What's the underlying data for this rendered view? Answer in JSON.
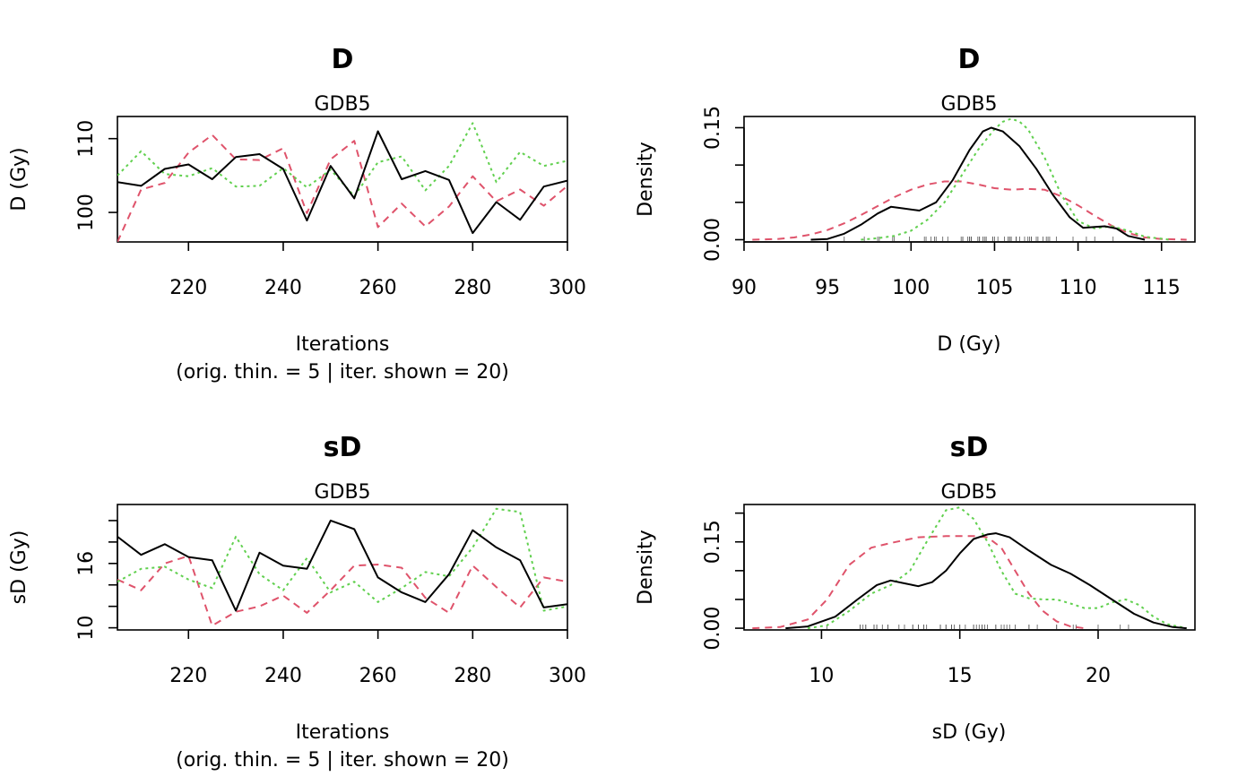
{
  "chart_data": [
    {
      "type": "line",
      "title": "D",
      "subtitle": "GDB5",
      "xlabel": "Iterations",
      "xlabel2": "(orig. thin. = 5 | iter. shown = 20)",
      "ylabel": "D (Gy)",
      "xlim": [
        205,
        300
      ],
      "ylim": [
        96,
        113
      ],
      "xticks": [
        220,
        240,
        260,
        280,
        300
      ],
      "yticks": [
        100,
        110
      ],
      "x": [
        205,
        210,
        215,
        220,
        225,
        230,
        235,
        240,
        245,
        250,
        255,
        260,
        265,
        270,
        275,
        280,
        285,
        290,
        295,
        300
      ],
      "series": [
        {
          "color": "#000000",
          "dash": "",
          "values": [
            104.1,
            103.6,
            105.9,
            106.5,
            104.5,
            107.5,
            107.9,
            105.9,
            98.9,
            106.3,
            101.9,
            111.0,
            104.5,
            105.6,
            104.4,
            97.2,
            101.4,
            99.0,
            103.5,
            104.3
          ]
        },
        {
          "color": "#DF536B",
          "dash": "8,6",
          "values": [
            96.0,
            103.1,
            104.0,
            108.1,
            110.5,
            107.2,
            107.1,
            108.7,
            99.9,
            107.2,
            109.7,
            98.0,
            101.2,
            98.1,
            100.8,
            104.9,
            101.5,
            103.1,
            100.9,
            103.6
          ]
        },
        {
          "color": "#61D04F",
          "dash": "3,4",
          "values": [
            105.0,
            108.3,
            105.2,
            104.9,
            106.0,
            103.5,
            103.6,
            106.0,
            103.4,
            105.8,
            102.2,
            106.8,
            107.6,
            103.0,
            106.3,
            112.1,
            104.1,
            108.2,
            106.3,
            107.0
          ]
        }
      ]
    },
    {
      "type": "line",
      "title": "D",
      "subtitle": "GDB5",
      "xlabel": "D (Gy)",
      "ylabel": "Density",
      "xlim": [
        90,
        117
      ],
      "ylim": [
        -0.003,
        0.165
      ],
      "xticks": [
        90,
        95,
        100,
        105,
        110,
        115
      ],
      "yticks": [
        0,
        0.05,
        0.1,
        0.15
      ],
      "ytick_labels": [
        "0.00",
        "",
        "",
        "0.15"
      ],
      "series": [
        {
          "color": "#000000",
          "dash": "",
          "x": [
            94,
            95,
            96,
            97,
            98,
            98.8,
            99.5,
            100.5,
            101.5,
            102.5,
            103.5,
            104.3,
            104.8,
            105.5,
            106.5,
            107.5,
            108.5,
            109.5,
            110.3,
            111,
            111.6,
            112.3,
            113,
            114
          ],
          "values": [
            0,
            0.001,
            0.008,
            0.02,
            0.035,
            0.044,
            0.042,
            0.039,
            0.05,
            0.08,
            0.12,
            0.145,
            0.15,
            0.145,
            0.125,
            0.095,
            0.06,
            0.03,
            0.016,
            0.017,
            0.018,
            0.015,
            0.005,
            0
          ]
        },
        {
          "color": "#DF536B",
          "dash": "8,6",
          "x": [
            90.5,
            92,
            93,
            94,
            95,
            96,
            97,
            98,
            99,
            100,
            101,
            102,
            103,
            104,
            105,
            106,
            107,
            108,
            109,
            110,
            111,
            112,
            113,
            114,
            115,
            116.5
          ],
          "values": [
            0,
            0.001,
            0.003,
            0.007,
            0.013,
            0.022,
            0.033,
            0.045,
            0.057,
            0.067,
            0.074,
            0.078,
            0.078,
            0.074,
            0.069,
            0.067,
            0.068,
            0.067,
            0.058,
            0.046,
            0.032,
            0.019,
            0.009,
            0.003,
            0.001,
            0
          ]
        },
        {
          "color": "#61D04F",
          "dash": "3,4",
          "x": [
            97,
            98,
            99,
            100,
            101,
            102,
            103,
            104,
            105,
            105.5,
            106,
            106.5,
            107,
            108,
            109,
            110,
            111,
            112,
            113,
            114,
            115.5
          ],
          "values": [
            0,
            0.002,
            0.005,
            0.012,
            0.027,
            0.05,
            0.085,
            0.12,
            0.148,
            0.158,
            0.162,
            0.158,
            0.148,
            0.11,
            0.06,
            0.025,
            0.015,
            0.018,
            0.012,
            0.004,
            0
          ]
        }
      ]
    },
    {
      "type": "line",
      "title": "sD",
      "subtitle": "GDB5",
      "xlabel": "Iterations",
      "xlabel2": "(orig. thin. = 5 | iter. shown = 20)",
      "ylabel": "sD (Gy)",
      "xlim": [
        205,
        300
      ],
      "ylim": [
        9.8,
        21.5
      ],
      "xticks": [
        220,
        240,
        260,
        280,
        300
      ],
      "yticks": [
        10,
        12,
        14,
        16,
        18,
        20
      ],
      "ytick_labels": [
        "10",
        "",
        "",
        "16",
        "",
        ""
      ],
      "x": [
        205,
        210,
        215,
        220,
        225,
        230,
        235,
        240,
        245,
        250,
        255,
        260,
        265,
        270,
        275,
        280,
        285,
        290,
        295,
        300
      ],
      "series": [
        {
          "color": "#000000",
          "dash": "",
          "values": [
            18.5,
            16.8,
            17.8,
            16.6,
            16.3,
            11.6,
            17.0,
            15.8,
            15.5,
            20.0,
            19.2,
            14.7,
            13.3,
            12.4,
            15.0,
            19.1,
            17.5,
            16.3,
            11.9,
            12.2
          ]
        },
        {
          "color": "#DF536B",
          "dash": "8,6",
          "values": [
            14.5,
            13.5,
            16.0,
            16.7,
            10.2,
            11.5,
            12.0,
            13.0,
            11.4,
            13.5,
            15.8,
            15.9,
            15.6,
            12.8,
            11.4,
            15.8,
            13.8,
            11.9,
            14.7,
            14.3
          ]
        },
        {
          "color": "#61D04F",
          "dash": "3,4",
          "values": [
            14.3,
            15.5,
            15.7,
            14.5,
            13.7,
            18.5,
            15.0,
            13.5,
            16.5,
            13.3,
            14.3,
            12.4,
            13.7,
            15.2,
            14.8,
            17.5,
            21.1,
            20.8,
            11.6,
            12.0
          ]
        }
      ]
    },
    {
      "type": "line",
      "title": "sD",
      "subtitle": "GDB5",
      "xlabel": "sD (Gy)",
      "ylabel": "Density",
      "xlim": [
        7.2,
        23.5
      ],
      "ylim": [
        -0.003,
        0.215
      ],
      "xticks": [
        10,
        15,
        20
      ],
      "yticks": [
        0,
        0.05,
        0.1,
        0.15,
        0.2
      ],
      "ytick_labels": [
        "0.00",
        "",
        "",
        "0.15",
        ""
      ],
      "series": [
        {
          "color": "#000000",
          "dash": "",
          "x": [
            8.7,
            9.5,
            10.5,
            11.3,
            12,
            12.5,
            13,
            13.5,
            14,
            14.5,
            15,
            15.5,
            16,
            16.3,
            16.8,
            17.5,
            18.3,
            19,
            19.7,
            20.5,
            21.3,
            22,
            22.7,
            23.2
          ],
          "values": [
            0,
            0.003,
            0.02,
            0.05,
            0.075,
            0.083,
            0.078,
            0.073,
            0.08,
            0.1,
            0.13,
            0.155,
            0.163,
            0.165,
            0.158,
            0.135,
            0.11,
            0.095,
            0.075,
            0.05,
            0.025,
            0.01,
            0.002,
            0
          ]
        },
        {
          "color": "#DF536B",
          "dash": "8,6",
          "x": [
            7.5,
            8.5,
            9.5,
            10.2,
            11,
            11.8,
            12.5,
            13.5,
            14.5,
            15.5,
            16,
            16.5,
            17,
            17.5,
            18,
            18.5,
            19,
            19.5
          ],
          "values": [
            0,
            0.002,
            0.015,
            0.05,
            0.11,
            0.14,
            0.148,
            0.158,
            0.16,
            0.16,
            0.158,
            0.14,
            0.1,
            0.06,
            0.03,
            0.012,
            0.003,
            0
          ]
        },
        {
          "color": "#61D04F",
          "dash": "3,4",
          "x": [
            9.5,
            10.2,
            11,
            11.8,
            12.5,
            13.2,
            13.8,
            14.5,
            15,
            15.5,
            16,
            16.5,
            17,
            17.5,
            18,
            18.5,
            19,
            19.5,
            20,
            20.5,
            21,
            21.5,
            22,
            22.5,
            23.2
          ],
          "values": [
            0,
            0.005,
            0.03,
            0.06,
            0.075,
            0.1,
            0.15,
            0.205,
            0.21,
            0.19,
            0.15,
            0.1,
            0.06,
            0.052,
            0.05,
            0.05,
            0.043,
            0.035,
            0.035,
            0.045,
            0.05,
            0.04,
            0.02,
            0.007,
            0
          ]
        }
      ]
    }
  ]
}
